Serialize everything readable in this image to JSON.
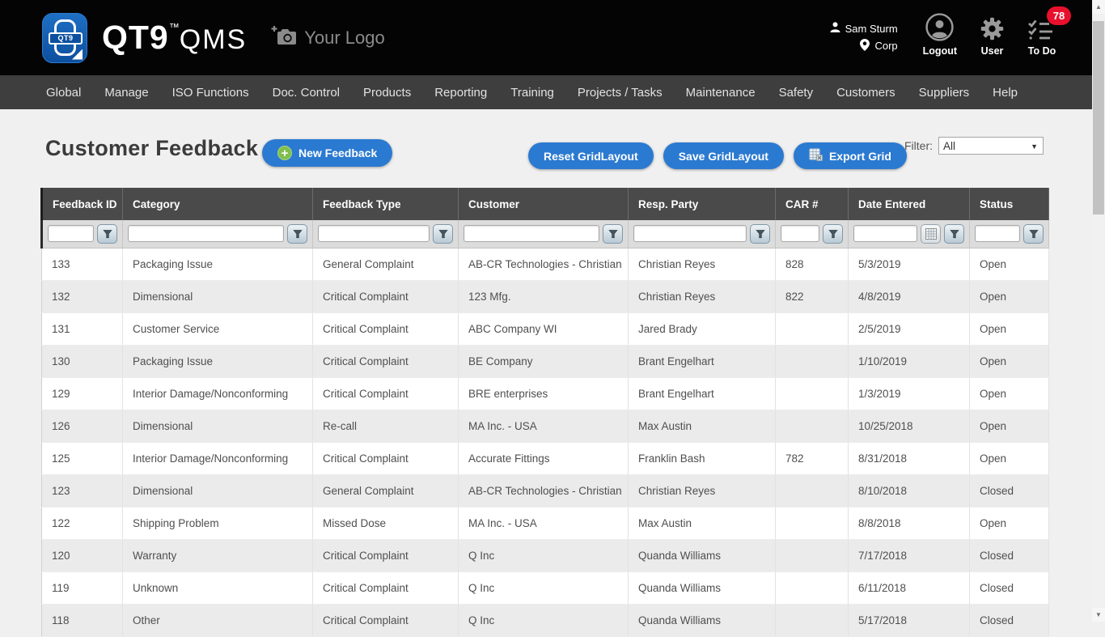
{
  "app": {
    "logo_mark_text": "QT9",
    "logo_text": "QT9",
    "logo_tm": "™",
    "logo_suffix": "QMS",
    "your_logo_label": "Your Logo",
    "user_name": "Sam Sturm",
    "user_org": "Corp",
    "logout_label": "Logout",
    "user_label": "User",
    "todo_label": "To Do",
    "todo_count": "78"
  },
  "colors": {
    "accent_blue": "#2b7ad1",
    "badge_red": "#e8112d",
    "plus_green": "#7fbf4d",
    "grid_header_gray": "#4a4a4a",
    "topbar_black": "#040404",
    "nav_gray": "#3e3e3e"
  },
  "icons": {
    "logo": "qt9-logo-icon",
    "your_logo": "camera-plus-icon",
    "user_name": "person-icon",
    "user_org": "map-pin-icon",
    "logout": "avatar-circle-icon",
    "user": "gear-icon",
    "todo": "checklist-icon",
    "new_feedback": "plus-circle-icon",
    "export": "spreadsheet-icon",
    "column_filter": "funnel-icon",
    "date_picker": "calendar-grid-icon",
    "filter_dropdown": "chevron-down-icon",
    "scrollbar": [
      "scroll-up-icon",
      "scroll-down-icon"
    ]
  },
  "nav": {
    "items": [
      "Global",
      "Manage",
      "ISO Functions",
      "Doc. Control",
      "Products",
      "Reporting",
      "Training",
      "Projects / Tasks",
      "Maintenance",
      "Safety",
      "Customers",
      "Suppliers",
      "Help"
    ]
  },
  "page": {
    "title": "Customer Feedback",
    "new_feedback_label": "New Feedback",
    "reset_grid_label": "Reset GridLayout",
    "save_grid_label": "Save GridLayout",
    "export_grid_label": "Export Grid",
    "filter_label": "Filter:",
    "filter_value": "All"
  },
  "grid": {
    "columns": [
      {
        "key": "id",
        "label": "Feedback ID"
      },
      {
        "key": "category",
        "label": "Category"
      },
      {
        "key": "type",
        "label": "Feedback Type"
      },
      {
        "key": "customer",
        "label": "Customer"
      },
      {
        "key": "resp",
        "label": "Resp. Party"
      },
      {
        "key": "car",
        "label": "CAR #"
      },
      {
        "key": "date",
        "label": "Date Entered",
        "has_calendar": true
      },
      {
        "key": "status",
        "label": "Status"
      }
    ],
    "rows": [
      {
        "id": "133",
        "category": "Packaging Issue",
        "type": "General Complaint",
        "customer": "AB-CR Technologies - Christian",
        "resp": "Christian Reyes",
        "car": "828",
        "date": "5/3/2019",
        "status": "Open"
      },
      {
        "id": "132",
        "category": "Dimensional",
        "type": "Critical Complaint",
        "customer": "123 Mfg.",
        "resp": "Christian Reyes",
        "car": "822",
        "date": "4/8/2019",
        "status": "Open"
      },
      {
        "id": "131",
        "category": "Customer Service",
        "type": "Critical Complaint",
        "customer": "ABC Company WI",
        "resp": "Jared Brady",
        "car": "",
        "date": "2/5/2019",
        "status": "Open"
      },
      {
        "id": "130",
        "category": "Packaging Issue",
        "type": "Critical Complaint",
        "customer": "BE Company",
        "resp": "Brant Engelhart",
        "car": "",
        "date": "1/10/2019",
        "status": "Open"
      },
      {
        "id": "129",
        "category": "Interior Damage/Nonconforming",
        "type": "Critical Complaint",
        "customer": "BRE enterprises",
        "resp": "Brant Engelhart",
        "car": "",
        "date": "1/3/2019",
        "status": "Open"
      },
      {
        "id": "126",
        "category": "Dimensional",
        "type": "Re-call",
        "customer": "MA Inc. - USA",
        "resp": "Max Austin",
        "car": "",
        "date": "10/25/2018",
        "status": "Open"
      },
      {
        "id": "125",
        "category": "Interior Damage/Nonconforming",
        "type": "Critical Complaint",
        "customer": "Accurate Fittings",
        "resp": "Franklin Bash",
        "car": "782",
        "date": "8/31/2018",
        "status": "Open"
      },
      {
        "id": "123",
        "category": "Dimensional",
        "type": "General Complaint",
        "customer": "AB-CR Technologies - Christian",
        "resp": "Christian Reyes",
        "car": "",
        "date": "8/10/2018",
        "status": "Closed"
      },
      {
        "id": "122",
        "category": "Shipping Problem",
        "type": "Missed Dose",
        "customer": "MA Inc. - USA",
        "resp": "Max Austin",
        "car": "",
        "date": "8/8/2018",
        "status": "Open"
      },
      {
        "id": "120",
        "category": "Warranty",
        "type": "Critical Complaint",
        "customer": "Q Inc",
        "resp": "Quanda Williams",
        "car": "",
        "date": "7/17/2018",
        "status": "Closed"
      },
      {
        "id": "119",
        "category": "Unknown",
        "type": "Critical Complaint",
        "customer": "Q Inc",
        "resp": "Quanda Williams",
        "car": "",
        "date": "6/11/2018",
        "status": "Closed"
      },
      {
        "id": "118",
        "category": "Other",
        "type": "Critical Complaint",
        "customer": "Q Inc",
        "resp": "Quanda Williams",
        "car": "",
        "date": "5/17/2018",
        "status": "Closed"
      }
    ]
  }
}
